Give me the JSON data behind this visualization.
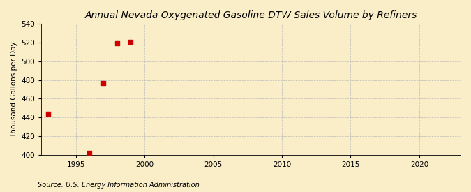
{
  "title": "Annual Nevada Oxygenated Gasoline DTW Sales Volume by Refiners",
  "ylabel": "Thousand Gallons per Day",
  "source": "Source: U.S. Energy Information Administration",
  "x_data": [
    1993,
    1996,
    1997,
    1998,
    1999
  ],
  "y_data": [
    444,
    402,
    477,
    519,
    521
  ],
  "xlim": [
    1992.5,
    2023
  ],
  "ylim": [
    400,
    540
  ],
  "yticks": [
    400,
    420,
    440,
    460,
    480,
    500,
    520,
    540
  ],
  "xticks": [
    1995,
    2000,
    2005,
    2010,
    2015,
    2020
  ],
  "marker_color": "#cc0000",
  "marker_size": 18,
  "background_color": "#faeec8",
  "grid_color": "#bbbbbb",
  "title_fontsize": 10,
  "label_fontsize": 7.5,
  "tick_fontsize": 7.5,
  "source_fontsize": 7
}
